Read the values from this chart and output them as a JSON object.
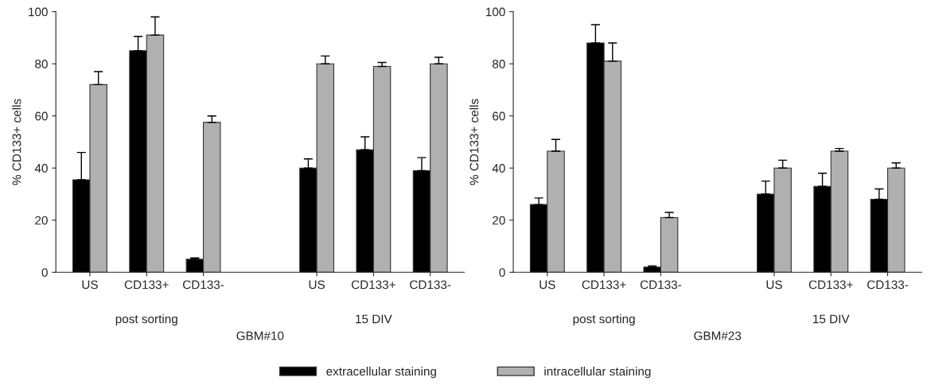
{
  "chart_data": [
    {
      "type": "bar",
      "categories": [
        "US",
        "CD133+",
        "CD133-",
        null,
        "US",
        "CD133+",
        "CD133-"
      ],
      "xlabel": "GBM#10",
      "ylabel": "% CD133+ cells",
      "ylim": [
        0,
        100
      ],
      "yticks": [
        0,
        20,
        40,
        60,
        80,
        100
      ],
      "grid": false,
      "legend": "bottom",
      "annotations": [
        "post sorting",
        "15 DIV"
      ],
      "series": [
        {
          "name": "extracellular staining",
          "color": "#000000",
          "values": [
            35.5,
            85,
            5,
            null,
            40,
            47,
            39
          ],
          "errors": [
            [
              35.5,
              46
            ],
            [
              85,
              90.5
            ],
            [
              5,
              5.5
            ],
            null,
            [
              40,
              43.5
            ],
            [
              47,
              52
            ],
            [
              39,
              44
            ]
          ]
        },
        {
          "name": "intracellular staining",
          "color": "#b0b0b0",
          "values": [
            72,
            91,
            57.5,
            null,
            80,
            79,
            80
          ],
          "errors": [
            [
              72,
              77
            ],
            [
              91,
              98
            ],
            [
              57.5,
              60
            ],
            null,
            [
              80,
              83
            ],
            [
              79,
              80.5
            ],
            [
              80,
              82.5
            ]
          ]
        }
      ]
    },
    {
      "type": "bar",
      "categories": [
        "US",
        "CD133+",
        "CD133-",
        null,
        "US",
        "CD133+",
        "CD133-"
      ],
      "xlabel": "GBM#23",
      "ylabel": "% CD133+ cells",
      "ylim": [
        0,
        100
      ],
      "yticks": [
        0,
        20,
        40,
        60,
        80,
        100
      ],
      "grid": false,
      "annotations": [
        "post sorting",
        "15 DIV"
      ],
      "series": [
        {
          "color": "#000000",
          "values": [
            26,
            88,
            2,
            null,
            30,
            33,
            28
          ],
          "errors": [
            [
              26,
              28.5
            ],
            [
              88,
              95
            ],
            [
              2,
              2.5
            ],
            null,
            [
              30,
              35
            ],
            [
              33,
              38
            ],
            [
              28,
              32
            ]
          ]
        },
        {
          "color": "#b0b0b0",
          "values": [
            46.5,
            81,
            21,
            null,
            40,
            46.5,
            40
          ],
          "errors": [
            [
              46.5,
              51
            ],
            [
              81,
              88
            ],
            [
              21,
              23
            ],
            null,
            [
              40,
              43
            ],
            [
              46.5,
              47.5
            ],
            [
              40,
              42
            ]
          ]
        }
      ]
    }
  ]
}
